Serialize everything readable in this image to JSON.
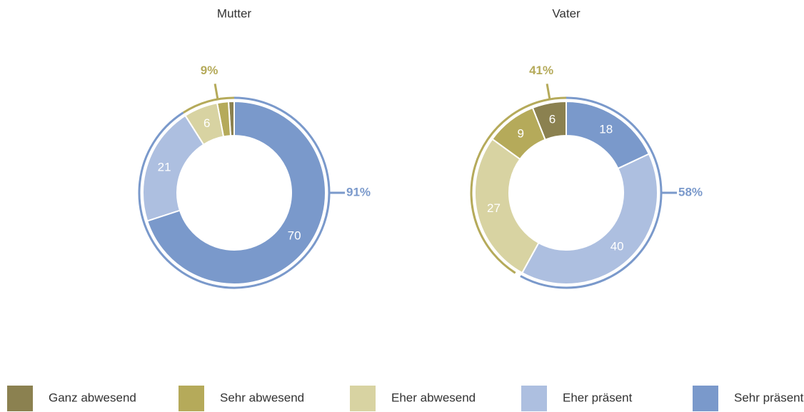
{
  "chart_data": [
    {
      "type": "pie",
      "title": "Mutter",
      "categories": [
        "Ganz abwesend",
        "Sehr abwesend",
        "Eher abwesend",
        "Eher präsent",
        "Sehr präsent"
      ],
      "values": [
        1,
        2,
        6,
        21,
        70
      ],
      "colors": [
        "#8b8150",
        "#b5aa5a",
        "#d8d3a2",
        "#adbfe0",
        "#7a99cb"
      ],
      "annotations": [
        {
          "value": 9,
          "label": "9%",
          "color": "#b5aa5a"
        },
        {
          "value": 91,
          "label": "91%",
          "color": "#7a99cb"
        }
      ]
    },
    {
      "type": "pie",
      "title": "Vater",
      "categories": [
        "Ganz abwesend",
        "Sehr abwesend",
        "Eher abwesend",
        "Eher präsent",
        "Sehr präsent"
      ],
      "values": [
        6,
        9,
        27,
        40,
        18
      ],
      "colors": [
        "#8b8150",
        "#b5aa5a",
        "#d8d3a2",
        "#adbfe0",
        "#7a99cb"
      ],
      "annotations": [
        {
          "value": 41,
          "label": "41%",
          "color": "#b5aa5a"
        },
        {
          "value": 58,
          "label": "58%",
          "color": "#7a99cb"
        }
      ]
    }
  ]
}
